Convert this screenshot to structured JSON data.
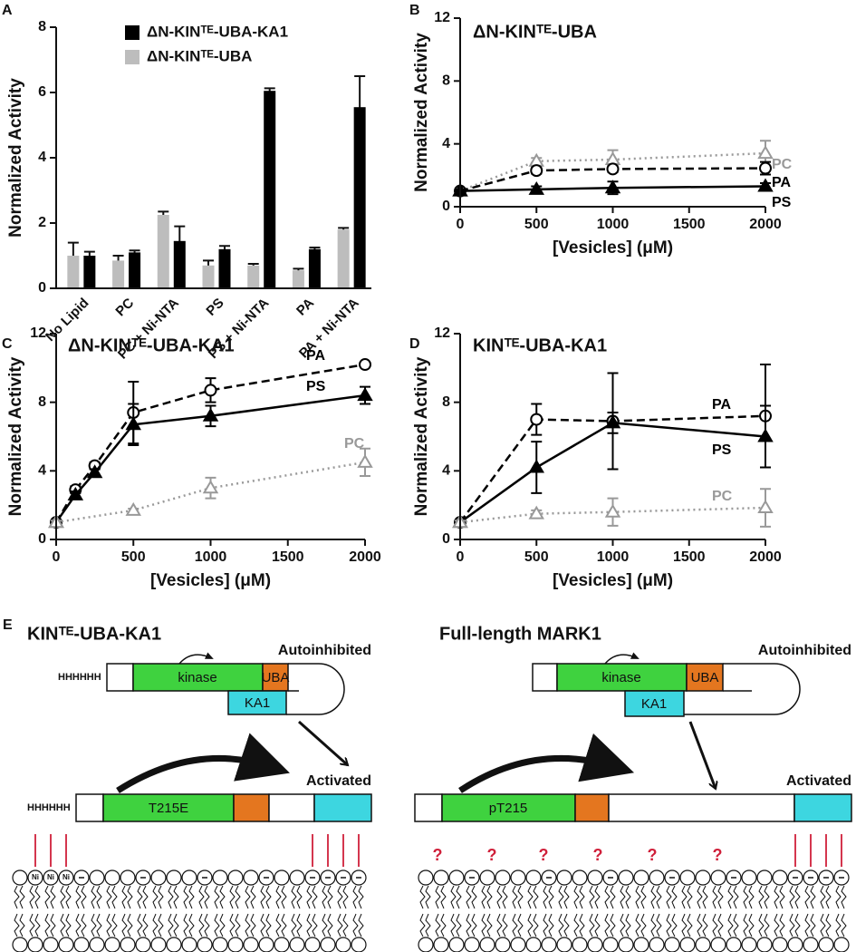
{
  "chart_data": [
    {
      "label": "A",
      "type": "bar",
      "ylabel": "Normalized Activity",
      "categories": [
        "No Lipid",
        "PC",
        "PC + Ni-NTA",
        "PS",
        "PS + Ni-NTA",
        "PA",
        "PA + Ni-NTA"
      ],
      "series": [
        {
          "name": "ΔN-KINᵀᴱ-UBA-KA1",
          "color": "#000000",
          "values": [
            1.0,
            1.1,
            1.45,
            1.2,
            6.05,
            1.2,
            5.55
          ],
          "errors": [
            0.12,
            0.06,
            0.45,
            0.1,
            0.08,
            0.05,
            0.95
          ]
        },
        {
          "name": "ΔN-KINᵀᴱ-UBA",
          "color": "#bdbdbd",
          "values": [
            1.0,
            0.85,
            2.25,
            0.7,
            0.7,
            0.55,
            1.8
          ],
          "errors": [
            0.4,
            0.15,
            0.1,
            0.15,
            0.05,
            0.05,
            0.05
          ]
        }
      ],
      "ylim": [
        0,
        8
      ],
      "yticks": [
        0,
        2,
        4,
        6,
        8
      ]
    },
    {
      "label": "B",
      "type": "line",
      "title": "ΔN-KINᵀᴱ-UBA",
      "xlabel": "[Vesicles] (μM)",
      "ylabel": "Normalized Activity",
      "series": [
        {
          "name": "PC",
          "color": "#999999",
          "linestyle": "dotted",
          "marker": "open-triangle",
          "x": [
            0,
            500,
            1000,
            2000
          ],
          "values": [
            1.0,
            2.9,
            3.0,
            3.4
          ],
          "errors": [
            0.1,
            0.2,
            0.6,
            0.8
          ]
        },
        {
          "name": "PA",
          "color": "#000000",
          "linestyle": "dashed",
          "marker": "open-circle",
          "x": [
            0,
            500,
            1000,
            2000
          ],
          "values": [
            1.0,
            2.3,
            2.4,
            2.45
          ],
          "errors": [
            0.1,
            0.2,
            0.2,
            0.4
          ]
        },
        {
          "name": "PS",
          "color": "#000000",
          "linestyle": "solid",
          "marker": "filled-triangle",
          "x": [
            0,
            500,
            1000,
            2000
          ],
          "values": [
            1.0,
            1.1,
            1.2,
            1.3
          ],
          "errors": [
            0.1,
            0.2,
            0.4,
            0.2
          ]
        }
      ],
      "xlim": [
        0,
        2000
      ],
      "xticks": [
        0,
        500,
        1000,
        1500,
        2000
      ],
      "ylim": [
        0,
        12
      ],
      "yticks": [
        0,
        4,
        8,
        12
      ]
    },
    {
      "label": "C",
      "type": "line",
      "title": "ΔN-KINᵀᴱ-UBA-KA1",
      "xlabel": "[Vesicles] (μM)",
      "ylabel": "Normalized Activity",
      "series": [
        {
          "name": "PA",
          "color": "#000000",
          "linestyle": "dashed",
          "marker": "open-circle",
          "x": [
            0,
            125,
            250,
            500,
            1000,
            2000
          ],
          "values": [
            1.0,
            2.9,
            4.3,
            7.4,
            8.7,
            10.2
          ],
          "errors": [
            0.1,
            0.2,
            0.2,
            1.8,
            0.7,
            0.15
          ]
        },
        {
          "name": "PS",
          "color": "#000000",
          "linestyle": "solid",
          "marker": "filled-triangle",
          "x": [
            0,
            125,
            250,
            500,
            1000,
            2000
          ],
          "values": [
            1.0,
            2.6,
            3.9,
            6.7,
            7.2,
            8.4
          ],
          "errors": [
            0.1,
            0.2,
            0.2,
            1.2,
            0.6,
            0.5
          ]
        },
        {
          "name": "PC",
          "color": "#999999",
          "linestyle": "dotted",
          "marker": "open-triangle",
          "x": [
            0,
            500,
            1000,
            2000
          ],
          "values": [
            1.0,
            1.7,
            3.0,
            4.5
          ],
          "errors": [
            0.1,
            0.1,
            0.6,
            0.8
          ]
        }
      ],
      "xlim": [
        0,
        2000
      ],
      "xticks": [
        0,
        500,
        1000,
        1500,
        2000
      ],
      "ylim": [
        0,
        12
      ],
      "yticks": [
        0,
        4,
        8,
        12
      ]
    },
    {
      "label": "D",
      "type": "line",
      "title": "KINᵀᴱ-UBA-KA1",
      "xlabel": "[Vesicles] (μM)",
      "ylabel": "Normalized Activity",
      "series": [
        {
          "name": "PA",
          "color": "#000000",
          "linestyle": "dashed",
          "marker": "open-circle",
          "x": [
            0,
            500,
            1000,
            2000
          ],
          "values": [
            1.0,
            7.0,
            6.9,
            7.2
          ],
          "errors": [
            0.1,
            0.9,
            2.8,
            3.0
          ]
        },
        {
          "name": "PS",
          "color": "#000000",
          "linestyle": "solid",
          "marker": "filled-triangle",
          "x": [
            0,
            500,
            1000,
            2000
          ],
          "values": [
            1.0,
            4.2,
            6.8,
            6.0
          ],
          "errors": [
            0.1,
            1.5,
            0.6,
            1.8
          ]
        },
        {
          "name": "PC",
          "color": "#999999",
          "linestyle": "dotted",
          "marker": "open-triangle",
          "x": [
            0,
            500,
            1000,
            2000
          ],
          "values": [
            1.0,
            1.5,
            1.6,
            1.85
          ],
          "errors": [
            0.1,
            0.2,
            0.8,
            1.1
          ]
        }
      ],
      "xlim": [
        0,
        2000
      ],
      "xticks": [
        0,
        500,
        1000,
        1500,
        2000
      ],
      "ylim": [
        0,
        12
      ],
      "yticks": [
        0,
        4,
        8,
        12
      ]
    }
  ],
  "diagram": {
    "label": "E",
    "left": {
      "title": "KINᵀᴱ-UBA-KA1",
      "autoinhibited": {
        "state": "Autoinhibited",
        "tag": "HHHHHH",
        "kinase": "kinase",
        "uba": "UBA",
        "ka1": "KA1"
      },
      "activated": {
        "state": "Activated",
        "tag": "HHHHHH",
        "kinase": "T215E",
        "nickel": [
          "Ni",
          "Ni",
          "Ni"
        ]
      }
    },
    "right": {
      "title": "Full-length MARK1",
      "autoinhibited": {
        "state": "Autoinhibited",
        "kinase": "kinase",
        "uba": "UBA",
        "ka1": "KA1"
      },
      "activated": {
        "state": "Activated",
        "kinase": "pT215",
        "unknown": [
          "?",
          "?",
          "?",
          "?",
          "?",
          "?"
        ]
      }
    }
  }
}
